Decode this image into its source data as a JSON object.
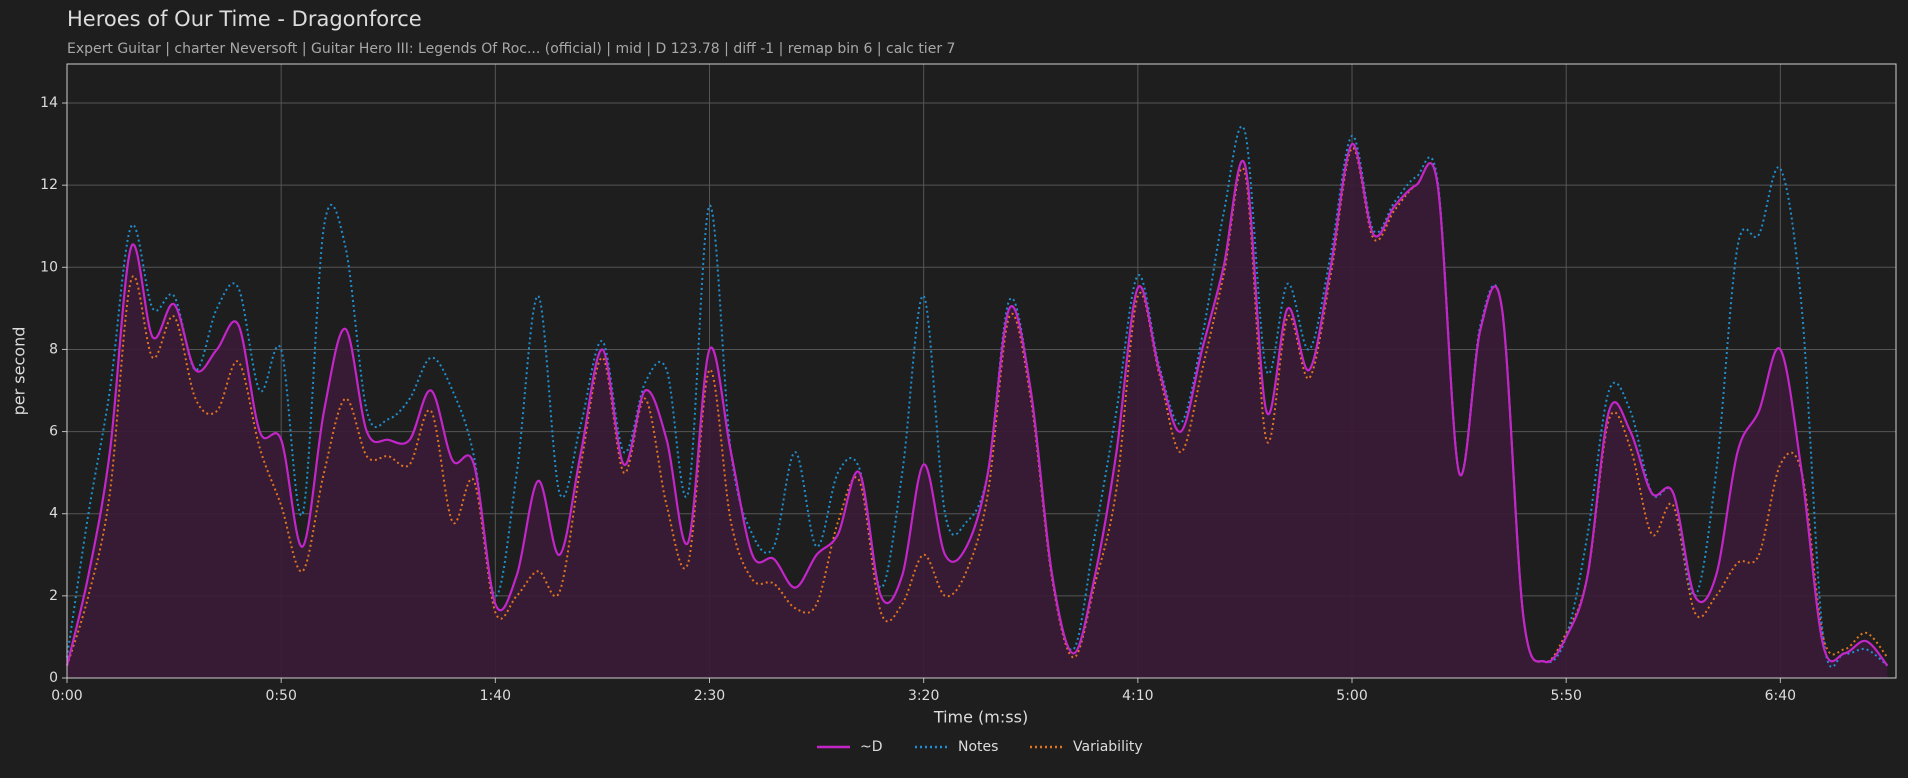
{
  "chart_data": {
    "type": "line",
    "title": "Heroes of Our Time - Dragonforce",
    "subtitle": "Expert Guitar  |  charter Neversoft  |  Guitar Hero III: Legends Of Roc... (official)  |  mid  |  D 123.78  |  diff -1  |  remap bin 6  |  calc tier 7",
    "xlabel": "Time (m:ss)",
    "ylabel": "per second",
    "x": [
      0,
      5,
      10,
      15,
      20,
      25,
      30,
      35,
      40,
      45,
      50,
      55,
      60,
      65,
      70,
      75,
      80,
      85,
      90,
      95,
      100,
      105,
      110,
      115,
      120,
      125,
      130,
      135,
      140,
      145,
      150,
      155,
      160,
      165,
      170,
      175,
      180,
      185,
      190,
      195,
      200,
      205,
      210,
      215,
      220,
      225,
      230,
      235,
      240,
      245,
      250,
      255,
      260,
      265,
      270,
      275,
      280,
      285,
      290,
      295,
      300,
      305,
      310,
      315,
      320,
      325,
      330,
      335,
      340,
      345,
      350,
      355,
      360,
      365,
      370,
      375,
      380,
      385,
      390,
      395,
      400,
      405,
      410,
      415,
      420,
      425
    ],
    "series": [
      {
        "name": "~D",
        "color": "#c326c8",
        "style": "solid",
        "fill": "#3a1a36",
        "values": [
          0.3,
          2.5,
          5.5,
          10.5,
          8.3,
          9.1,
          7.5,
          8.0,
          8.6,
          6.0,
          5.8,
          3.2,
          6.5,
          8.5,
          6.0,
          5.8,
          5.8,
          7.0,
          5.3,
          5.2,
          1.8,
          2.5,
          4.8,
          3.0,
          5.5,
          8.0,
          5.2,
          7.0,
          5.8,
          3.3,
          8.0,
          5.5,
          3.0,
          2.9,
          2.2,
          3.0,
          3.5,
          5.0,
          2.0,
          2.5,
          5.2,
          3.0,
          3.2,
          5.0,
          9.0,
          7.0,
          2.5,
          0.6,
          2.5,
          5.5,
          9.5,
          7.5,
          6.0,
          8.0,
          10.0,
          12.5,
          6.5,
          9.0,
          7.5,
          10.0,
          13.0,
          10.8,
          11.5,
          12.0,
          12.0,
          5.0,
          8.5,
          9.0,
          1.5,
          0.4,
          1.0,
          2.5,
          6.5,
          6.0,
          4.5,
          4.5,
          2.0,
          2.5,
          5.5,
          6.5,
          8.0,
          5.0,
          0.8,
          0.6,
          0.9,
          0.3
        ]
      },
      {
        "name": "Notes",
        "color": "#1f8fd0",
        "style": "dotted",
        "values": [
          0.5,
          4,
          7,
          11,
          9,
          9.3,
          7.5,
          9,
          9.5,
          7,
          8,
          4,
          11,
          10.5,
          6.5,
          6.3,
          6.8,
          7.8,
          7,
          5.4,
          2,
          5,
          9.3,
          4.5,
          6.2,
          8.2,
          5.5,
          7.2,
          7.5,
          4.5,
          11.5,
          5.5,
          3.5,
          3.2,
          5.5,
          3.2,
          5,
          5.1,
          2.2,
          5,
          9.3,
          4,
          3.8,
          5,
          9.2,
          7,
          2.5,
          0.7,
          3.5,
          6.5,
          9.8,
          7.6,
          6.2,
          8.3,
          11.3,
          13.3,
          7.5,
          9.6,
          8,
          10.3,
          13.2,
          10.9,
          11.6,
          12.2,
          12.1,
          5,
          8.6,
          9,
          1.5,
          0.4,
          1.0,
          3.5,
          7,
          6.5,
          4.5,
          4.5,
          2,
          5,
          10.5,
          10.8,
          12.4,
          9,
          1,
          0.6,
          0.7,
          0.3
        ]
      },
      {
        "name": "Variability",
        "color": "#e0751f",
        "style": "dotted",
        "values": [
          0.3,
          2,
          4.5,
          9.7,
          7.8,
          8.8,
          6.8,
          6.5,
          7.7,
          5.6,
          4.2,
          2.6,
          5,
          6.8,
          5.4,
          5.4,
          5.2,
          6.5,
          3.8,
          4.8,
          1.6,
          2,
          2.6,
          2.1,
          5.2,
          7.8,
          5,
          6.8,
          4.2,
          2.8,
          7.5,
          3.8,
          2.4,
          2.3,
          1.7,
          1.8,
          3.8,
          4.8,
          1.6,
          1.8,
          3,
          2,
          2.6,
          4.5,
          8.8,
          6.8,
          2.4,
          0.5,
          2.3,
          4.6,
          9.3,
          7.4,
          5.5,
          7.5,
          9.8,
          12.3,
          5.8,
          8.8,
          7.3,
          9.8,
          12.9,
          10.7,
          11.4,
          12,
          12,
          5,
          8.5,
          9,
          1.5,
          0.4,
          1.1,
          2.5,
          6.3,
          5.6,
          3.5,
          4.2,
          1.6,
          2,
          2.8,
          3,
          5.2,
          5,
          1,
          0.7,
          1.1,
          0.5
        ]
      }
    ],
    "xlim": [
      0,
      427
    ],
    "ylim": [
      0,
      14.95
    ],
    "xticks": [
      {
        "value": 0,
        "label": "0:00"
      },
      {
        "value": 50,
        "label": "0:50"
      },
      {
        "value": 100,
        "label": "1:40"
      },
      {
        "value": 150,
        "label": "2:30"
      },
      {
        "value": 200,
        "label": "3:20"
      },
      {
        "value": 250,
        "label": "4:10"
      },
      {
        "value": 300,
        "label": "5:00"
      },
      {
        "value": 350,
        "label": "5:50"
      },
      {
        "value": 400,
        "label": "6:40"
      }
    ],
    "yticks": [
      0,
      2,
      4,
      6,
      8,
      10,
      12,
      14
    ],
    "grid": true,
    "legend": "bottom"
  }
}
